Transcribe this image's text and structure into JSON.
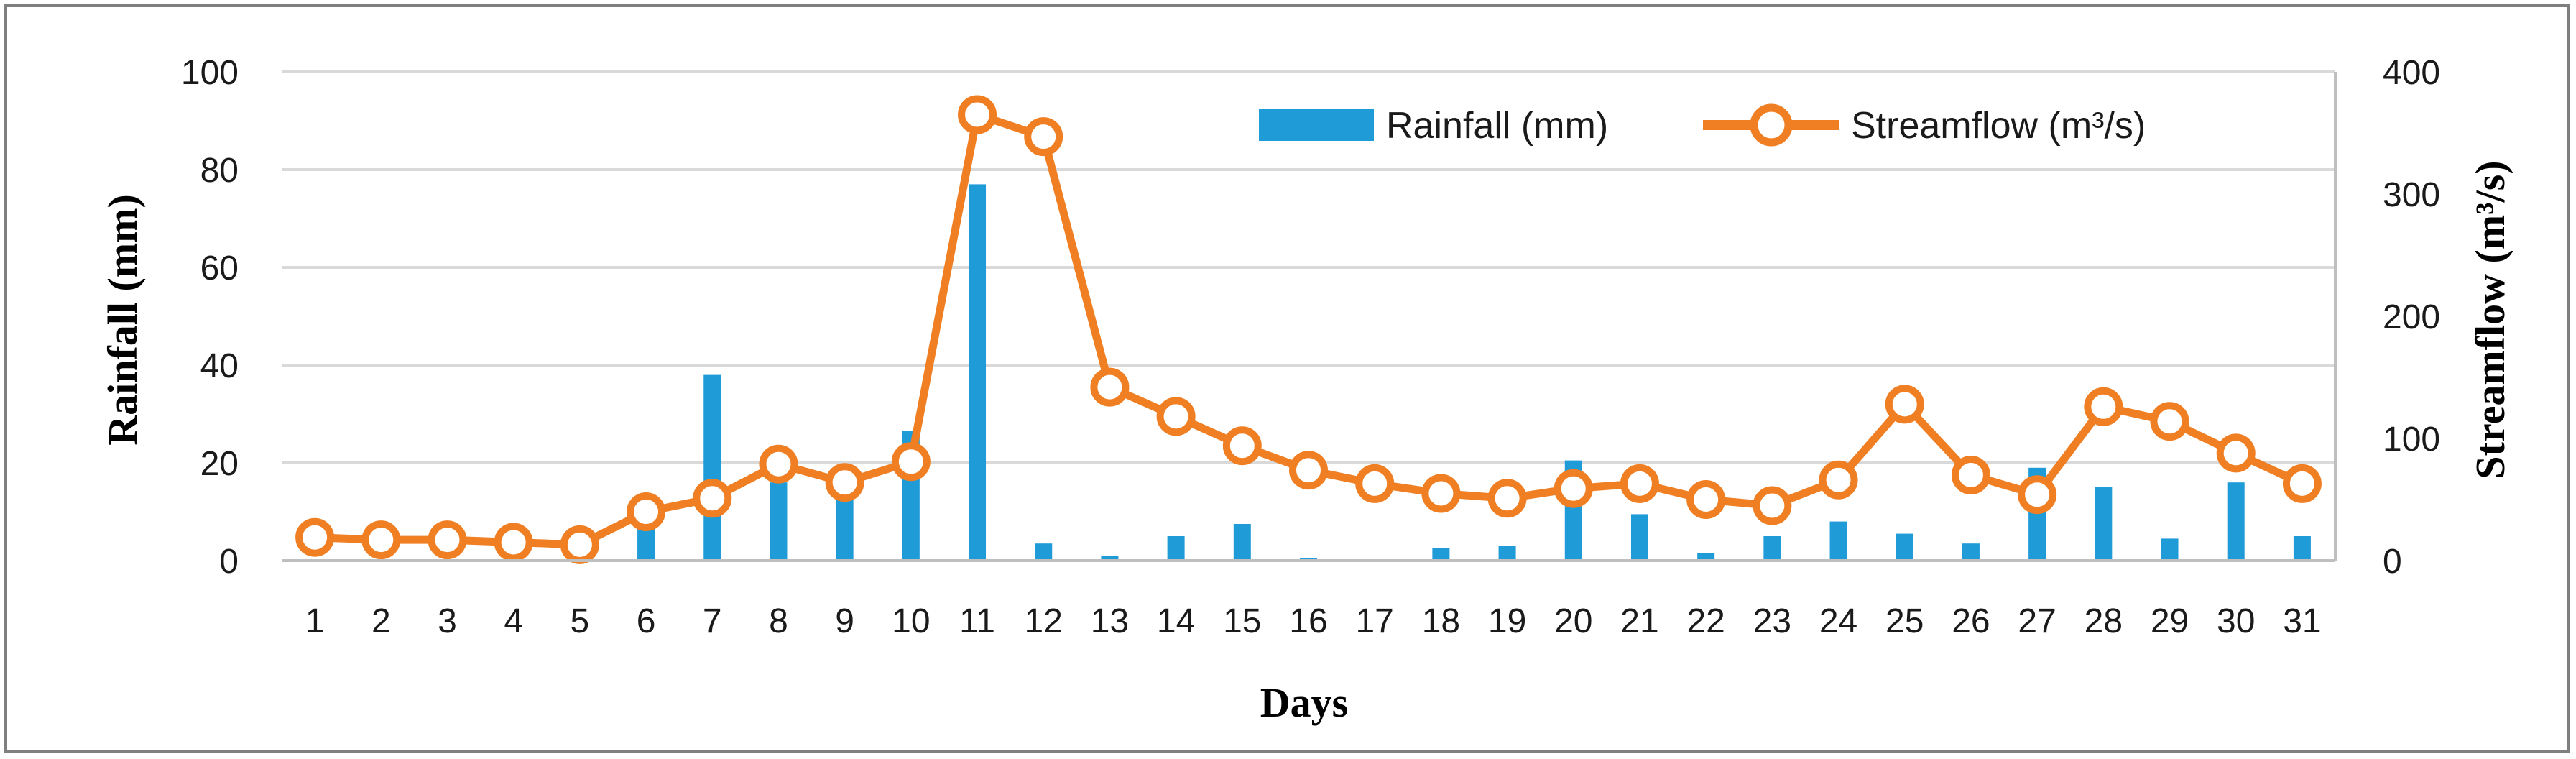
{
  "chart_data": {
    "type": "bar+line",
    "title": "",
    "xlabel": "Days",
    "ylabel": "Rainfall (mm)",
    "y2label": "Streamflow (m³/s)",
    "ylim": [
      0,
      100
    ],
    "y2lim": [
      0,
      400
    ],
    "yticks": [
      0,
      20,
      40,
      60,
      80,
      100
    ],
    "y2ticks": [
      0,
      100,
      200,
      300,
      400
    ],
    "grid": true,
    "legend_position": "top-right",
    "categories": [
      "1",
      "2",
      "3",
      "4",
      "5",
      "6",
      "7",
      "8",
      "9",
      "10",
      "11",
      "12",
      "13",
      "14",
      "15",
      "16",
      "17",
      "18",
      "19",
      "20",
      "21",
      "22",
      "23",
      "24",
      "25",
      "26",
      "27",
      "28",
      "29",
      "30",
      "31"
    ],
    "series": [
      {
        "name": "Rainfall (mm)",
        "type": "bar",
        "axis": "left",
        "color": "#1f9bd7",
        "values": [
          0,
          0,
          0,
          0,
          0,
          8,
          38,
          16,
          14,
          26.5,
          77,
          3.5,
          1,
          5,
          7.5,
          0.5,
          0,
          2.5,
          3,
          20.5,
          9.5,
          1.5,
          5,
          8,
          5.5,
          3.5,
          19,
          15,
          4.5,
          16,
          5
        ]
      },
      {
        "name": "Streamflow (m³/s)",
        "type": "line",
        "axis": "right",
        "color": "#f07f23",
        "values": [
          19,
          17,
          17,
          15,
          13,
          40,
          51,
          79,
          64,
          81,
          365,
          347,
          142,
          118,
          94,
          74,
          63,
          55,
          51,
          59,
          63,
          50,
          45,
          66,
          128,
          70,
          54,
          126,
          114,
          88,
          63
        ]
      }
    ]
  }
}
